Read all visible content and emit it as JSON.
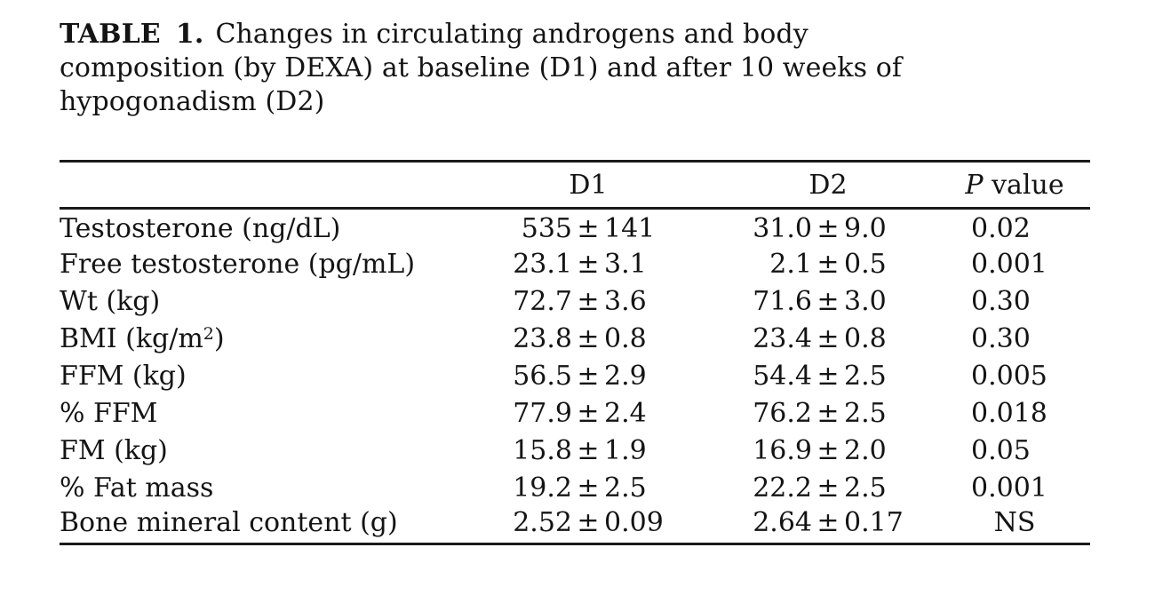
{
  "title": {
    "label": "TABLE 1.",
    "line1": "Changes in circulating androgens and body",
    "line2": "composition (by DEXA) at baseline (D1) and after 10 weeks of",
    "line3": "hypogonadism (D2)"
  },
  "table": {
    "pm": "±",
    "headers": {
      "metric": "",
      "d1": "D1",
      "d2": "D2",
      "p_italic": "P",
      "p_rest": " value"
    },
    "rows": [
      {
        "label": "Testosterone (ng/dL)",
        "d1": {
          "v": "535",
          "e": "141"
        },
        "d2": {
          "v": "31.0",
          "e": "9.0"
        },
        "p": "0.02"
      },
      {
        "label": "Free testosterone (pg/mL)",
        "d1": {
          "v": "23.1",
          "e": "3.1"
        },
        "d2": {
          "v": "2.1",
          "e": "0.5"
        },
        "p": "0.001"
      },
      {
        "label": "Wt (kg)",
        "d1": {
          "v": "72.7",
          "e": "3.6"
        },
        "d2": {
          "v": "71.6",
          "e": "3.0"
        },
        "p": "0.30"
      },
      {
        "label_pre": "BMI (kg/m",
        "label_sup": "2",
        "label_post": ")",
        "d1": {
          "v": "23.8",
          "e": "0.8"
        },
        "d2": {
          "v": "23.4",
          "e": "0.8"
        },
        "p": "0.30"
      },
      {
        "label": "FFM (kg)",
        "d1": {
          "v": "56.5",
          "e": "2.9"
        },
        "d2": {
          "v": "54.4",
          "e": "2.5"
        },
        "p": "0.005"
      },
      {
        "label": "% FFM",
        "d1": {
          "v": "77.9",
          "e": "2.4"
        },
        "d2": {
          "v": "76.2",
          "e": "2.5"
        },
        "p": "0.018"
      },
      {
        "label": "FM (kg)",
        "d1": {
          "v": "15.8",
          "e": "1.9"
        },
        "d2": {
          "v": "16.9",
          "e": "2.0"
        },
        "p": "0.05"
      },
      {
        "label": "% Fat mass",
        "d1": {
          "v": "19.2",
          "e": "2.5"
        },
        "d2": {
          "v": "22.2",
          "e": "2.5"
        },
        "p": "0.001"
      },
      {
        "label": "Bone mineral content (g)",
        "d1": {
          "v": "2.52",
          "e": "0.09"
        },
        "d2": {
          "v": "2.64",
          "e": "0.17"
        },
        "p": "NS"
      }
    ]
  },
  "colors": {
    "text": "#141414",
    "rule": "#1a1a1a",
    "background": "#ffffff"
  }
}
